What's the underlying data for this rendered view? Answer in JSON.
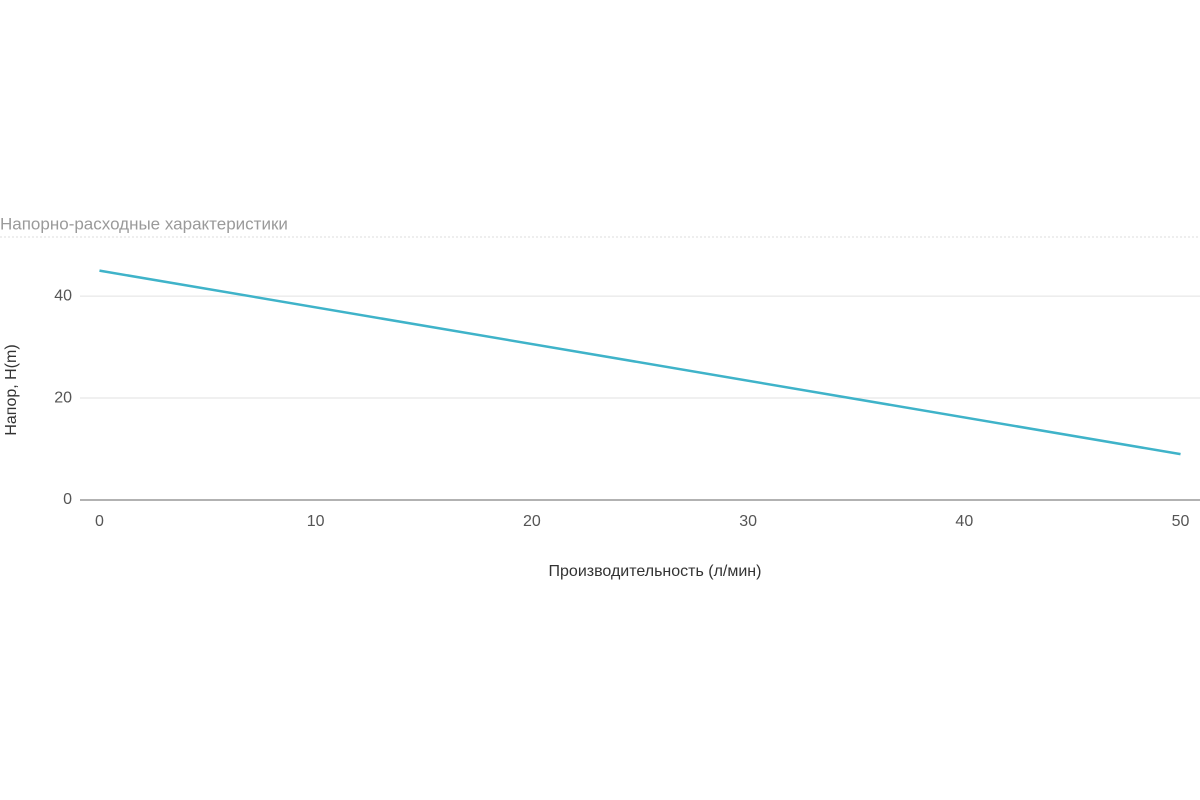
{
  "chart_data": {
    "type": "line",
    "title": "Напорно-расходные характеристики",
    "x_label": "Производительность (л/мин)",
    "y_label": "Напор, H(m)",
    "x": [
      0,
      50
    ],
    "series": [
      {
        "name": "Напор",
        "color": "#3fb3c9",
        "values": [
          45,
          9
        ]
      }
    ],
    "xlim": [
      -0.9,
      50.9
    ],
    "xticks": [
      0,
      10,
      20,
      30,
      40,
      50
    ],
    "ylim": [
      0,
      51.6
    ],
    "yticks": [
      0,
      20,
      40
    ],
    "grid": true
  }
}
